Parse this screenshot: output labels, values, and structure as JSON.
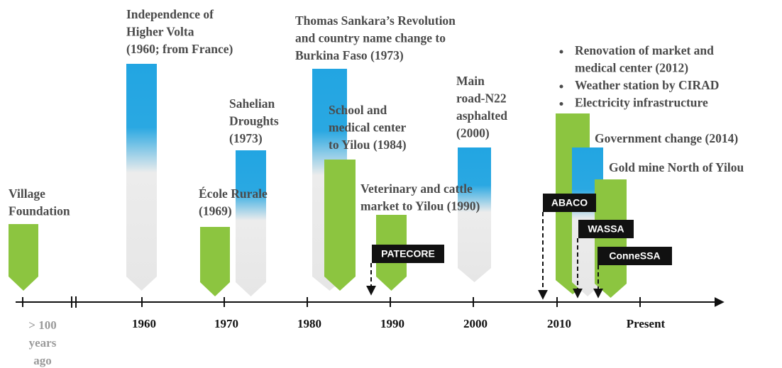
{
  "axis": {
    "labels": [
      [
        "> 100",
        "years",
        "ago"
      ],
      "1960",
      "1970",
      "1980",
      "1990",
      "2000",
      "2010",
      "Present"
    ]
  },
  "events": [
    {
      "lines": [
        "Village",
        "Foundation"
      ]
    },
    {
      "lines": [
        "Independence  of",
        "Higher Volta",
        "(1960; from France)"
      ]
    },
    {
      "lines": [
        "École Rurale",
        "(1969)"
      ]
    },
    {
      "lines": [
        "Sahelian",
        "Droughts",
        "(1973)"
      ]
    },
    {
      "lines": [
        "Thomas Sankara’s Revolution",
        "and country name change to",
        "Burkina Faso (1973)"
      ]
    },
    {
      "lines": [
        "School and",
        "medical center",
        "to Yilou (1984)"
      ]
    },
    {
      "lines": [
        "Veterinary and cattle",
        "market to Yilou (1990)"
      ]
    },
    {
      "lines": [
        "Main",
        "road-N22",
        "asphalted",
        "(2000)"
      ]
    },
    {
      "bullets": [
        [
          "Renovation of market and",
          "medical center (2012)"
        ],
        [
          "Weather station by CIRAD"
        ],
        [
          "Electricity infrastructure"
        ]
      ]
    },
    {
      "lines": [
        "Government change (2014)"
      ]
    },
    {
      "lines": [
        "Gold mine North of Yilou"
      ]
    }
  ],
  "projects": [
    "PATECORE",
    "ABACO",
    "WASSA",
    "ConneSSA"
  ]
}
